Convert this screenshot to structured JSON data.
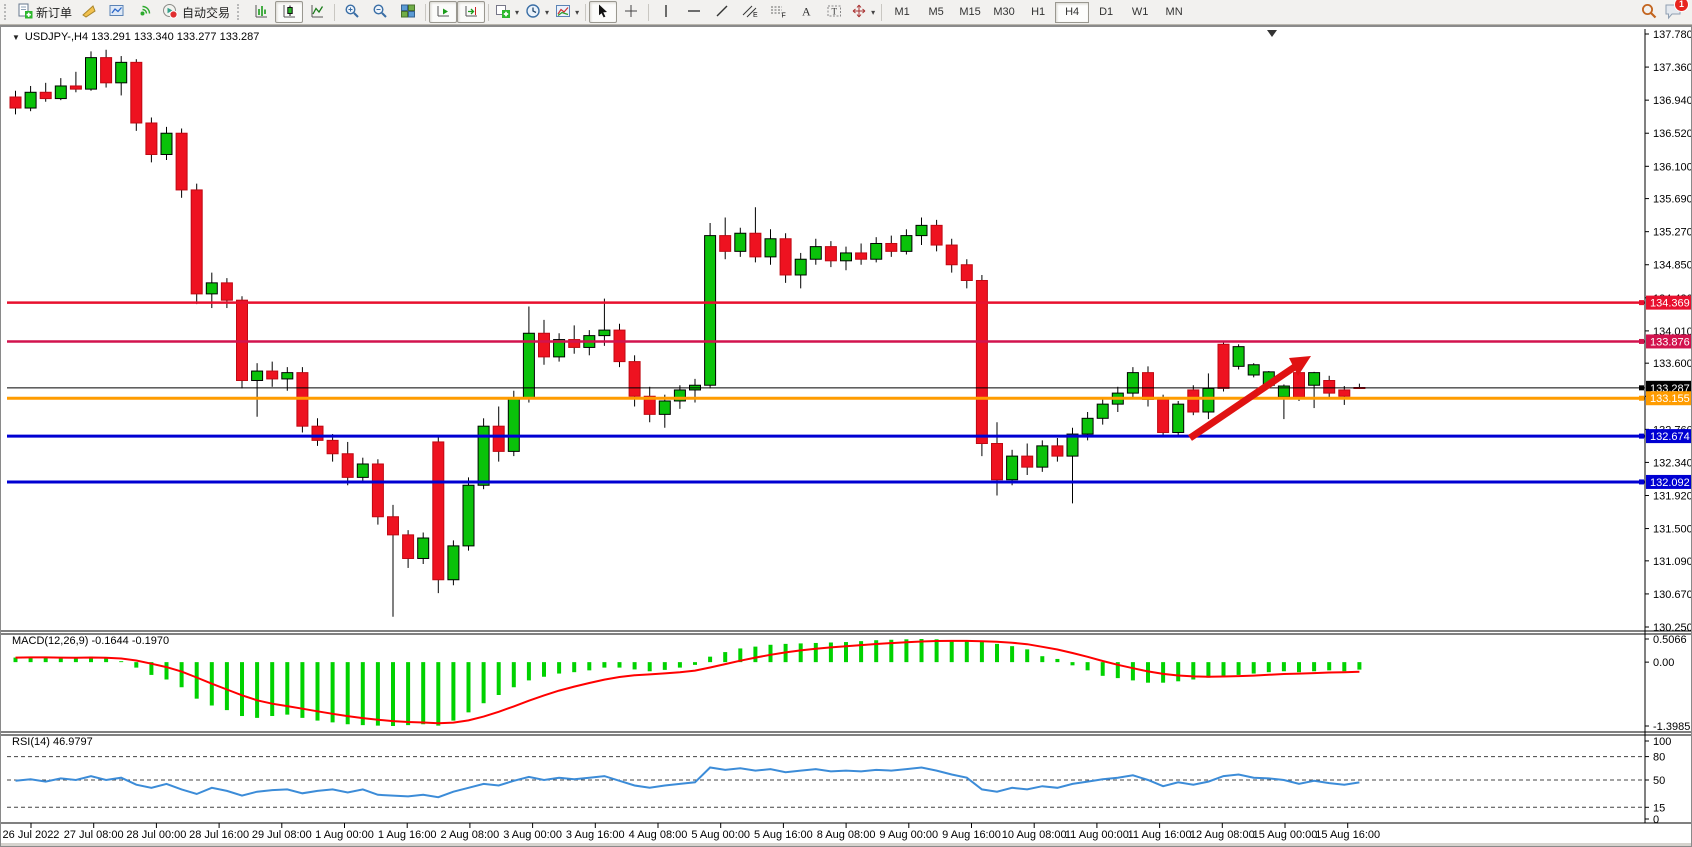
{
  "toolbar": {
    "new_order_label": "新订单",
    "autotrading_label": "自动交易",
    "chat_badge": "1",
    "icons": [
      "new-order-icon",
      "alerts-icon",
      "terminal-icon",
      "signals-icon",
      "autotrading-icon",
      "bar-chart-icon",
      "candlestick-icon",
      "line-chart-icon",
      "zoom-in-icon",
      "zoom-out-icon",
      "tile-windows-icon",
      "auto-scroll-icon",
      "chart-shift-icon",
      "indicators-icon",
      "periods-icon",
      "templates-icon",
      "cursor-icon",
      "crosshair-icon",
      "vertical-line-icon",
      "horizontal-line-icon",
      "trendline-icon",
      "channel-icon",
      "fibonacci-icon",
      "text-icon",
      "text-label-icon",
      "arrows-icon",
      "search-icon",
      "chat-icon"
    ],
    "timeframes": [
      {
        "label": "M1",
        "active": false
      },
      {
        "label": "M5",
        "active": false
      },
      {
        "label": "M15",
        "active": false
      },
      {
        "label": "M30",
        "active": false
      },
      {
        "label": "H1",
        "active": false
      },
      {
        "label": "H4",
        "active": true
      },
      {
        "label": "D1",
        "active": false
      },
      {
        "label": "W1",
        "active": false
      },
      {
        "label": "MN",
        "active": false
      }
    ]
  },
  "chart": {
    "title": "USDJPY-,H4  133.291 133.340 133.277 133.287",
    "symbol": "USDJPY-",
    "timeframe": "H4"
  },
  "chart_data": {
    "type": "candlestick",
    "title": "USDJPY- H4 with MACD(12,26,9) and RSI(14)",
    "ohlc_display": {
      "open": "133.291",
      "high": "133.340",
      "low": "133.277",
      "close": "133.287"
    },
    "colors": {
      "bull": "#0ac20a",
      "bull_border": "#000000",
      "bear": "#ee1220",
      "bear_border": "#c00812",
      "wick": "#000000",
      "macd_hist": "#00d200",
      "macd_signal": "#ff0000",
      "rsi_line": "#3c8cd8",
      "arrow": "#e01212",
      "level_red": "#e8102e",
      "level_crimson": "#d2134e",
      "level_orange": "#ff9c00",
      "level_blue": "#0000d2",
      "current_price": "#000000"
    },
    "main": {
      "price_top": 137.78,
      "price_bottom": 130.25,
      "y_ticks": [
        "137.780",
        "137.360",
        "136.940",
        "136.520",
        "136.100",
        "135.690",
        "135.270",
        "134.850",
        "134.430",
        "134.010",
        "133.600",
        "133.180",
        "132.760",
        "132.340",
        "131.920",
        "131.500",
        "131.090",
        "130.670",
        "130.250"
      ],
      "levels": [
        {
          "price": 134.369,
          "label": "134.369",
          "color": "#e8102e",
          "width": 2.5
        },
        {
          "price": 133.876,
          "label": "133.876",
          "color": "#d2134e",
          "width": 2.5
        },
        {
          "price": 133.287,
          "label": "133.287",
          "color": "#000000",
          "width": 1
        },
        {
          "price": 133.155,
          "label": "133.155",
          "color": "#ff9c00",
          "width": 3
        },
        {
          "price": 132.674,
          "label": "132.674",
          "color": "#0000d2",
          "width": 3
        },
        {
          "price": 132.092,
          "label": "132.092",
          "color": "#0000d2",
          "width": 3
        }
      ],
      "candles": [
        [
          136.98,
          137.06,
          136.76,
          136.84
        ],
        [
          136.84,
          137.12,
          136.8,
          137.04
        ],
        [
          137.04,
          137.16,
          136.92,
          136.96
        ],
        [
          136.96,
          137.22,
          136.94,
          137.12
        ],
        [
          137.12,
          137.3,
          137.04,
          137.08
        ],
        [
          137.08,
          137.56,
          137.06,
          137.48
        ],
        [
          137.48,
          137.58,
          137.1,
          137.16
        ],
        [
          137.16,
          137.5,
          137.0,
          137.42
        ],
        [
          137.42,
          137.46,
          136.55,
          136.65
        ],
        [
          136.65,
          136.72,
          136.15,
          136.25
        ],
        [
          136.25,
          136.6,
          136.18,
          136.52
        ],
        [
          136.52,
          136.58,
          135.7,
          135.8
        ],
        [
          135.8,
          135.88,
          134.35,
          134.48
        ],
        [
          134.48,
          134.75,
          134.3,
          134.62
        ],
        [
          134.62,
          134.68,
          134.3,
          134.4
        ],
        [
          134.4,
          134.45,
          133.28,
          133.38
        ],
        [
          133.38,
          133.6,
          132.92,
          133.5
        ],
        [
          133.5,
          133.62,
          133.3,
          133.4
        ],
        [
          133.4,
          133.55,
          133.25,
          133.48
        ],
        [
          133.48,
          133.55,
          132.72,
          132.8
        ],
        [
          132.8,
          132.9,
          132.55,
          132.62
        ],
        [
          132.62,
          132.7,
          132.35,
          132.45
        ],
        [
          132.45,
          132.6,
          132.05,
          132.15
        ],
        [
          132.15,
          132.4,
          132.08,
          132.32
        ],
        [
          132.32,
          132.38,
          131.55,
          131.65
        ],
        [
          131.65,
          131.8,
          130.38,
          131.42
        ],
        [
          131.42,
          131.48,
          131.0,
          131.12
        ],
        [
          131.12,
          131.45,
          131.05,
          131.38
        ],
        [
          132.6,
          132.66,
          130.68,
          130.85
        ],
        [
          130.85,
          131.35,
          130.78,
          131.28
        ],
        [
          131.28,
          132.15,
          131.22,
          132.05
        ],
        [
          132.05,
          132.9,
          132.0,
          132.8
        ],
        [
          132.8,
          133.05,
          132.35,
          132.48
        ],
        [
          132.48,
          133.25,
          132.42,
          133.15
        ],
        [
          133.15,
          134.32,
          133.1,
          133.98
        ],
        [
          133.98,
          134.15,
          133.58,
          133.68
        ],
        [
          133.68,
          133.98,
          133.62,
          133.9
        ],
        [
          133.9,
          134.08,
          133.72,
          133.8
        ],
        [
          133.8,
          134.02,
          133.7,
          133.95
        ],
        [
          133.95,
          134.42,
          133.82,
          134.02
        ],
        [
          134.02,
          134.1,
          133.55,
          133.62
        ],
        [
          133.62,
          133.7,
          133.05,
          133.18
        ],
        [
          133.18,
          133.3,
          132.85,
          132.95
        ],
        [
          132.95,
          133.2,
          132.78,
          133.12
        ],
        [
          133.12,
          133.32,
          133.02,
          133.26
        ],
        [
          133.26,
          133.4,
          133.1,
          133.32
        ],
        [
          133.32,
          135.38,
          133.28,
          135.22
        ],
        [
          135.22,
          135.45,
          134.92,
          135.02
        ],
        [
          135.02,
          135.32,
          134.95,
          135.25
        ],
        [
          135.25,
          135.58,
          134.88,
          134.95
        ],
        [
          134.95,
          135.3,
          134.85,
          135.18
        ],
        [
          135.18,
          135.25,
          134.62,
          134.72
        ],
        [
          134.72,
          135.0,
          134.55,
          134.92
        ],
        [
          134.92,
          135.18,
          134.85,
          135.08
        ],
        [
          135.08,
          135.15,
          134.82,
          134.9
        ],
        [
          134.9,
          135.08,
          134.78,
          135.0
        ],
        [
          135.0,
          135.12,
          134.85,
          134.92
        ],
        [
          134.92,
          135.2,
          134.88,
          135.12
        ],
        [
          135.12,
          135.22,
          134.95,
          135.02
        ],
        [
          135.02,
          135.3,
          134.98,
          135.22
        ],
        [
          135.22,
          135.45,
          135.1,
          135.35
        ],
        [
          135.35,
          135.42,
          135.02,
          135.1
        ],
        [
          135.1,
          135.18,
          134.75,
          134.85
        ],
        [
          134.85,
          134.92,
          134.55,
          134.65
        ],
        [
          134.65,
          134.72,
          132.42,
          132.58
        ],
        [
          132.58,
          132.85,
          131.92,
          132.12
        ],
        [
          132.12,
          132.5,
          132.05,
          132.42
        ],
        [
          132.42,
          132.58,
          132.18,
          132.28
        ],
        [
          132.28,
          132.62,
          132.22,
          132.55
        ],
        [
          132.55,
          132.65,
          132.35,
          132.42
        ],
        [
          132.42,
          132.78,
          131.82,
          132.7
        ],
        [
          132.7,
          132.98,
          132.62,
          132.9
        ],
        [
          132.9,
          133.15,
          132.82,
          133.08
        ],
        [
          133.08,
          133.3,
          132.98,
          133.22
        ],
        [
          133.22,
          133.55,
          133.15,
          133.48
        ],
        [
          133.48,
          133.56,
          133.05,
          133.14
        ],
        [
          133.14,
          133.2,
          132.68,
          132.72
        ],
        [
          132.72,
          133.12,
          132.66,
          133.08
        ],
        [
          133.26,
          133.32,
          132.94,
          132.98
        ],
        [
          132.98,
          133.47,
          132.89,
          133.28
        ],
        [
          133.84,
          133.88,
          133.24,
          133.28
        ],
        [
          133.56,
          133.84,
          133.52,
          133.81
        ],
        [
          133.45,
          133.6,
          133.42,
          133.58
        ],
        [
          133.32,
          133.5,
          133.28,
          133.49
        ],
        [
          133.17,
          133.33,
          132.89,
          133.31
        ],
        [
          133.48,
          133.53,
          133.12,
          133.17
        ],
        [
          133.32,
          133.49,
          133.03,
          133.48
        ],
        [
          133.38,
          133.44,
          133.14,
          133.22
        ],
        [
          133.26,
          133.31,
          133.07,
          133.18
        ],
        [
          133.291,
          133.34,
          133.277,
          133.287
        ]
      ]
    },
    "x_labels": [
      "26 Jul 2022",
      "27 Jul 08:00",
      "28 Jul 00:00",
      "28 Jul 16:00",
      "29 Jul 08:00",
      "1 Aug 00:00",
      "1 Aug 16:00",
      "2 Aug 08:00",
      "3 Aug 00:00",
      "3 Aug 16:00",
      "4 Aug 08:00",
      "5 Aug 00:00",
      "5 Aug 16:00",
      "8 Aug 08:00",
      "9 Aug 00:00",
      "9 Aug 16:00",
      "10 Aug 08:00",
      "11 Aug 00:00",
      "11 Aug 16:00",
      "12 Aug 08:00",
      "15 Aug 00:00",
      "15 Aug 16:00"
    ],
    "macd": {
      "label": "MACD(12,26,9) -0.1644 -0.1970",
      "main_value": -0.1644,
      "signal_value": -0.197,
      "max": 0.5066,
      "min": -1.3985,
      "ticks": [
        {
          "v": 0.5066,
          "label": "0.5066"
        },
        {
          "v": 0.0,
          "label": "0.00"
        },
        {
          "v": -1.3985,
          "label": "-1.3985"
        }
      ],
      "histogram": [
        0.1,
        0.12,
        0.1,
        0.08,
        0.09,
        0.12,
        0.08,
        0.02,
        -0.12,
        -0.28,
        -0.38,
        -0.55,
        -0.8,
        -0.95,
        -1.05,
        -1.18,
        -1.22,
        -1.18,
        -1.15,
        -1.22,
        -1.28,
        -1.32,
        -1.36,
        -1.38,
        -1.39,
        -1.3985,
        -1.38,
        -1.36,
        -1.39,
        -1.28,
        -1.1,
        -0.9,
        -0.72,
        -0.55,
        -0.4,
        -0.32,
        -0.25,
        -0.22,
        -0.18,
        -0.12,
        -0.12,
        -0.16,
        -0.2,
        -0.17,
        -0.12,
        -0.06,
        0.12,
        0.22,
        0.3,
        0.34,
        0.38,
        0.4,
        0.41,
        0.42,
        0.43,
        0.44,
        0.46,
        0.48,
        0.49,
        0.5,
        0.5066,
        0.5,
        0.48,
        0.46,
        0.44,
        0.4,
        0.35,
        0.28,
        0.13,
        0.07,
        -0.07,
        -0.18,
        -0.3,
        -0.35,
        -0.4,
        -0.45,
        -0.45,
        -0.42,
        -0.38,
        -0.34,
        -0.3,
        -0.28,
        -0.25,
        -0.22,
        -0.2,
        -0.22,
        -0.2,
        -0.18,
        -0.2,
        -0.1644
      ]
    },
    "rsi": {
      "label": "RSI(14) 46.9797",
      "value": 46.9797,
      "ticks": [
        {
          "v": 100,
          "label": "100",
          "dashed": false
        },
        {
          "v": 80,
          "label": "80",
          "dashed": true
        },
        {
          "v": 50,
          "label": "50",
          "dashed": true
        },
        {
          "v": 15,
          "label": "15",
          "dashed": true
        },
        {
          "v": 0,
          "label": "0",
          "dashed": false
        }
      ],
      "values": [
        49,
        51,
        48,
        52,
        50,
        55,
        50,
        53,
        44,
        40,
        45,
        38,
        32,
        40,
        36,
        30,
        35,
        37,
        38,
        33,
        36,
        38,
        34,
        38,
        31,
        30,
        29,
        31,
        28,
        35,
        40,
        45,
        43,
        49,
        54,
        50,
        53,
        51,
        53,
        55,
        49,
        43,
        40,
        43,
        45,
        47,
        66,
        63,
        65,
        62,
        64,
        60,
        62,
        64,
        61,
        62,
        61,
        63,
        62,
        64,
        66,
        62,
        57,
        53,
        38,
        35,
        40,
        38,
        42,
        40,
        45,
        48,
        51,
        53,
        56,
        50,
        42,
        47,
        44,
        48,
        55,
        57,
        53,
        52,
        50,
        45,
        49,
        46,
        44,
        46.98
      ]
    }
  }
}
